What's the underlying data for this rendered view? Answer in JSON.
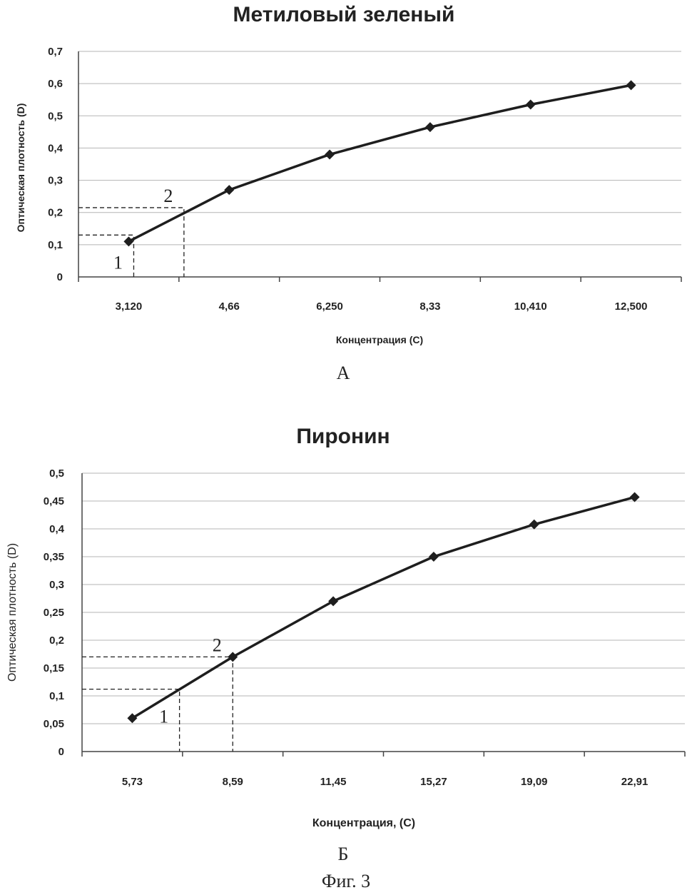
{
  "figure_caption": "Фиг. 3",
  "chart_data": [
    {
      "type": "line",
      "panel_letter": "А",
      "title": "Метиловый зеленый",
      "xlabel": "Концентрация (С)",
      "ylabel": "Оптическая плотность (D)",
      "categories": [
        "3,120",
        "4,66",
        "6,250",
        "8,33",
        "10,410",
        "12,500"
      ],
      "values": [
        0.11,
        0.27,
        0.38,
        0.465,
        0.535,
        0.595
      ],
      "ylim": [
        0,
        0.7
      ],
      "yticks": [
        "0",
        "0,1",
        "0,2",
        "0,3",
        "0,4",
        "0,5",
        "0,6",
        "0,7"
      ],
      "grid": true,
      "annotations": [
        {
          "label": "1",
          "x_index": 0.05,
          "y": 0.13
        },
        {
          "label": "2",
          "x_index": 0.55,
          "y": 0.215
        }
      ]
    },
    {
      "type": "line",
      "panel_letter": "Б",
      "title": "Пиронин",
      "xlabel": "Концентрация, (С)",
      "ylabel": "Оптическая плотность (D)",
      "categories": [
        "5,73",
        "8,59",
        "11,45",
        "15,27",
        "19,09",
        "22,91"
      ],
      "values": [
        0.06,
        0.17,
        0.27,
        0.35,
        0.408,
        0.457
      ],
      "ylim": [
        0,
        0.5
      ],
      "yticks": [
        "0",
        "0,05",
        "0,1",
        "0,15",
        "0,2",
        "0,25",
        "0,3",
        "0,35",
        "0,4",
        "0,45",
        "0,5"
      ],
      "grid": true,
      "annotations": [
        {
          "label": "1",
          "x_index": 0.47,
          "y": 0.112
        },
        {
          "label": "2",
          "x_index": 1.0,
          "y": 0.17
        }
      ]
    }
  ]
}
